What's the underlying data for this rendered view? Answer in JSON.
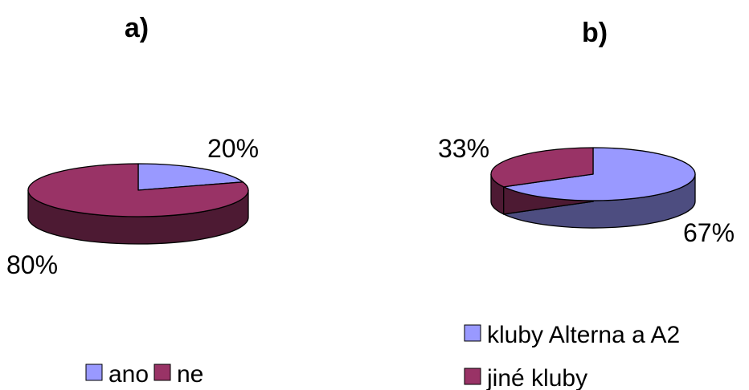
{
  "colors": {
    "light_top": "#9999FF",
    "light_side": "#4D4D80",
    "dark_top": "#993366",
    "dark_side": "#4D1A33",
    "outline": "#000000"
  },
  "chart_data": [
    {
      "type": "pie",
      "style": "3d",
      "title": "a)",
      "categories": [
        "ano",
        "ne"
      ],
      "values": [
        20,
        80
      ],
      "data_labels": [
        "20%",
        "80%"
      ],
      "legend": {
        "placement": "bottom",
        "orientation": "horizontal"
      }
    },
    {
      "type": "pie",
      "style": "3d",
      "title": "b)",
      "categories": [
        "kluby Alterna a A2",
        "jiné kluby"
      ],
      "values": [
        67,
        33
      ],
      "data_labels": [
        "67%",
        "33%"
      ],
      "legend": {
        "placement": "bottom",
        "orientation": "vertical"
      }
    }
  ]
}
